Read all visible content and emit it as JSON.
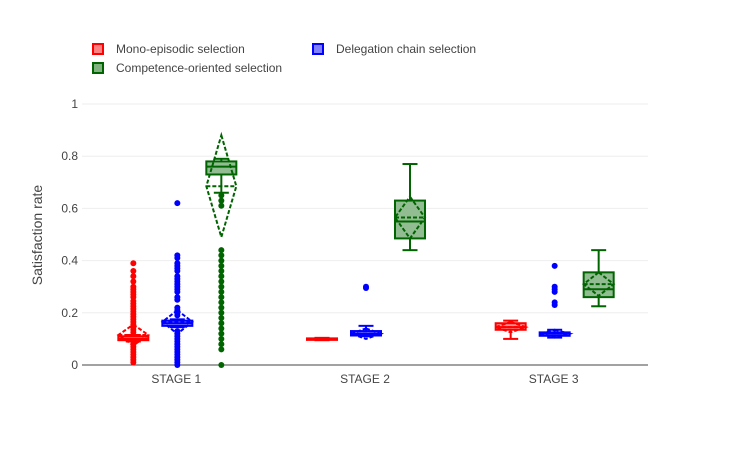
{
  "legend": {
    "items": [
      {
        "label": "Mono-episodic selection",
        "color": "#ff0000",
        "fill": "#ff8080"
      },
      {
        "label": "Delegation chain selection",
        "color": "#0000ff",
        "fill": "#8080ff"
      },
      {
        "label": "Competence-oriented selection",
        "color": "#006400",
        "fill": "#7fb27f"
      }
    ],
    "placement": "top-left"
  },
  "chart_data": {
    "type": "box",
    "title": "",
    "xlabel": "",
    "ylabel": "Satisfaction rate",
    "ylim": [
      0,
      1
    ],
    "yticks": [
      0,
      0.2,
      0.4,
      0.6,
      0.8,
      1
    ],
    "ytick_labels": [
      "0",
      "0.2",
      "0.4",
      "0.6",
      "0.8",
      "1"
    ],
    "grid": true,
    "categories": [
      "STAGE 1",
      "STAGE 2",
      "STAGE 3"
    ],
    "series": [
      {
        "name": "Mono-episodic selection",
        "color": "#ff0000",
        "fill": "#ff8080",
        "boxes": [
          {
            "category": "STAGE 1",
            "whisker_low": 0.09,
            "q1": 0.095,
            "median": 0.1,
            "q3": 0.11,
            "whisker_high": 0.115,
            "mean": 0.115,
            "sd": 0.04,
            "outliers": [
              0.01,
              0.02,
              0.03,
              0.04,
              0.05,
              0.06,
              0.07,
              0.08,
              0.125,
              0.135,
              0.145,
              0.155,
              0.165,
              0.175,
              0.185,
              0.195,
              0.205,
              0.215,
              0.225,
              0.235,
              0.245,
              0.26,
              0.27,
              0.28,
              0.29,
              0.3,
              0.32,
              0.34,
              0.36,
              0.39
            ]
          },
          {
            "category": "STAGE 2",
            "whisker_low": 0.095,
            "q1": 0.097,
            "median": 0.1,
            "q3": 0.102,
            "whisker_high": 0.104,
            "mean": 0.099,
            "sd": 0.003,
            "outliers": []
          },
          {
            "category": "STAGE 3",
            "whisker_low": 0.1,
            "q1": 0.135,
            "median": 0.145,
            "q3": 0.16,
            "whisker_high": 0.17,
            "mean": 0.145,
            "sd": 0.02,
            "outliers": []
          }
        ]
      },
      {
        "name": "Delegation chain selection",
        "color": "#0000ff",
        "fill": "#8080ff",
        "boxes": [
          {
            "category": "STAGE 1",
            "whisker_low": 0.145,
            "q1": 0.15,
            "median": 0.16,
            "q3": 0.17,
            "whisker_high": 0.175,
            "mean": 0.165,
            "sd": 0.045,
            "outliers": [
              0.0,
              0.01,
              0.02,
              0.03,
              0.04,
              0.05,
              0.06,
              0.07,
              0.08,
              0.09,
              0.1,
              0.11,
              0.12,
              0.13,
              0.19,
              0.2,
              0.21,
              0.22,
              0.25,
              0.26,
              0.28,
              0.29,
              0.3,
              0.31,
              0.32,
              0.33,
              0.34,
              0.36,
              0.37,
              0.38,
              0.39,
              0.41,
              0.42,
              0.62
            ]
          },
          {
            "category": "STAGE 2",
            "whisker_low": 0.11,
            "q1": 0.113,
            "median": 0.12,
            "q3": 0.13,
            "whisker_high": 0.15,
            "mean": 0.12,
            "sd": 0.02,
            "outliers": [
              0.295,
              0.3
            ]
          },
          {
            "category": "STAGE 3",
            "whisker_low": 0.105,
            "q1": 0.112,
            "median": 0.12,
            "q3": 0.125,
            "whisker_high": 0.135,
            "mean": 0.12,
            "sd": 0.015,
            "outliers": [
              0.23,
              0.24,
              0.28,
              0.29,
              0.3,
              0.38
            ]
          }
        ]
      },
      {
        "name": "Competence-oriented selection",
        "color": "#006400",
        "fill": "#7fb27f",
        "boxes": [
          {
            "category": "STAGE 1",
            "whisker_low": 0.66,
            "q1": 0.73,
            "median": 0.76,
            "q3": 0.78,
            "whisker_high": 0.79,
            "mean": 0.685,
            "sd": 0.195,
            "outliers": [
              0.0,
              0.06,
              0.08,
              0.1,
              0.12,
              0.14,
              0.16,
              0.18,
              0.2,
              0.22,
              0.24,
              0.26,
              0.28,
              0.3,
              0.32,
              0.34,
              0.36,
              0.38,
              0.4,
              0.42,
              0.44,
              0.61,
              0.63,
              0.65
            ]
          },
          {
            "category": "STAGE 2",
            "whisker_low": 0.44,
            "q1": 0.485,
            "median": 0.55,
            "q3": 0.63,
            "whisker_high": 0.77,
            "mean": 0.565,
            "sd": 0.08,
            "outliers": []
          },
          {
            "category": "STAGE 3",
            "whisker_low": 0.225,
            "q1": 0.26,
            "median": 0.29,
            "q3": 0.355,
            "whisker_high": 0.44,
            "mean": 0.31,
            "sd": 0.045,
            "outliers": []
          }
        ]
      }
    ]
  }
}
